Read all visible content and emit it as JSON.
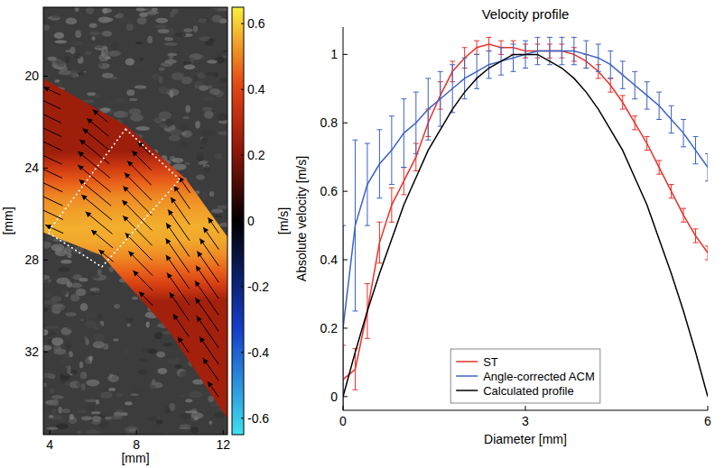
{
  "chart_data": [
    {
      "type": "vector_field",
      "xlabel": "[mm]",
      "ylabel": "[mm]",
      "xlim": [
        3.7,
        12.2
      ],
      "ylim": [
        35.6,
        17.0
      ],
      "xticks": [
        4,
        8,
        12
      ],
      "yticks": [
        20,
        24,
        28,
        32
      ],
      "vessel": {
        "upper_x": [
          3.7,
          7.6,
          10.3,
          12.2
        ],
        "upper_y": [
          20.1,
          22.2,
          24.5,
          27.0
        ],
        "lower_x": [
          3.7,
          6.4,
          9.5,
          12.2
        ],
        "lower_y": [
          26.8,
          27.8,
          31.1,
          34.9
        ]
      },
      "roi": {
        "x": [
          7.5,
          10.0,
          6.4,
          3.9
        ],
        "y": [
          22.3,
          24.5,
          28.3,
          26.8
        ]
      },
      "vectors": {
        "positions": [
          0.08,
          0.3,
          0.52,
          0.74,
          0.94
        ],
        "speeds": [
          [
            0.25,
            0.36,
            0.44,
            0.5,
            0.54,
            0.56,
            0.55,
            0.52,
            0.46,
            0.38,
            0.26
          ],
          [
            0.26,
            0.37,
            0.45,
            0.51,
            0.55,
            0.56,
            0.55,
            0.52,
            0.46,
            0.37,
            0.25
          ],
          [
            0.25,
            0.36,
            0.45,
            0.51,
            0.54,
            0.56,
            0.55,
            0.51,
            0.45,
            0.37,
            0.26
          ],
          [
            0.26,
            0.37,
            0.44,
            0.5,
            0.54,
            0.55,
            0.54,
            0.51,
            0.45,
            0.36,
            0.25
          ],
          [
            0.25,
            0.36,
            0.44,
            0.5,
            0.53,
            0.55,
            0.54,
            0.51,
            0.44,
            0.36,
            0.25
          ]
        ]
      },
      "colorbar": {
        "label": "[m/s]",
        "lim": [
          -0.65,
          0.65
        ],
        "ticks": [
          -0.6,
          -0.4,
          -0.2,
          0,
          0.2,
          0.4,
          0.6
        ]
      }
    },
    {
      "type": "line",
      "title": "Velocity profile",
      "xlabel": "Diameter [mm]",
      "ylabel": "Absolute velocity [m/s]",
      "x": [
        0,
        0.2,
        0.4,
        0.6,
        0.8,
        1,
        1.2,
        1.4,
        1.6,
        1.8,
        2,
        2.2,
        2.4,
        2.6,
        2.8,
        3,
        3.2,
        3.4,
        3.6,
        3.8,
        4,
        4.2,
        4.4,
        4.6,
        4.8,
        5,
        5.2,
        5.4,
        5.6,
        5.8,
        6
      ],
      "xlim": [
        0,
        6
      ],
      "xticks": [
        0,
        3,
        6
      ],
      "ylim": [
        -0.04,
        1.08
      ],
      "yticks": [
        0,
        0.2,
        0.4,
        0.6,
        0.8,
        1
      ],
      "legend": "bottom",
      "series": [
        {
          "name": "ST",
          "color": "#e8322c",
          "values": [
            0.05,
            0.08,
            0.25,
            0.45,
            0.56,
            0.63,
            0.7,
            0.8,
            0.88,
            0.95,
            0.99,
            1.02,
            1.03,
            1.02,
            1.02,
            1.01,
            1.01,
            1.01,
            1.01,
            1.0,
            0.98,
            0.95,
            0.91,
            0.86,
            0.8,
            0.74,
            0.67,
            0.6,
            0.53,
            0.47,
            0.42
          ],
          "errors": [
            0.1,
            0.06,
            0.08,
            0.06,
            0.05,
            0.04,
            0.04,
            0.04,
            0.04,
            0.03,
            0.03,
            0.02,
            0.02,
            0.02,
            0.02,
            0.02,
            0.02,
            0.02,
            0.02,
            0.02,
            0.02,
            0.02,
            0.02,
            0.02,
            0.02,
            0.02,
            0.02,
            0.02,
            0.02,
            0.02,
            0.02
          ]
        },
        {
          "name": "Angle-corrected ACM",
          "color": "#3a62c4",
          "values": [
            0.2,
            0.5,
            0.62,
            0.68,
            0.72,
            0.77,
            0.8,
            0.84,
            0.87,
            0.9,
            0.93,
            0.95,
            0.97,
            0.98,
            0.99,
            1.0,
            1.01,
            1.01,
            1.01,
            1.01,
            1.0,
            0.99,
            0.97,
            0.94,
            0.91,
            0.88,
            0.85,
            0.81,
            0.77,
            0.72,
            0.67
          ],
          "errors": [
            0.3,
            0.25,
            0.12,
            0.1,
            0.1,
            0.1,
            0.09,
            0.09,
            0.08,
            0.07,
            0.06,
            0.05,
            0.04,
            0.04,
            0.04,
            0.04,
            0.04,
            0.04,
            0.04,
            0.04,
            0.04,
            0.04,
            0.04,
            0.04,
            0.04,
            0.04,
            0.04,
            0.04,
            0.04,
            0.04,
            0.04
          ]
        },
        {
          "name": "Calculated profile",
          "color": "#000000",
          "values": [
            0,
            0.13,
            0.25,
            0.36,
            0.46,
            0.56,
            0.64,
            0.72,
            0.78,
            0.84,
            0.89,
            0.93,
            0.96,
            0.98,
            1.0,
            1,
            1.0,
            0.98,
            0.96,
            0.93,
            0.89,
            0.84,
            0.78,
            0.72,
            0.64,
            0.56,
            0.46,
            0.36,
            0.25,
            0.13,
            0
          ]
        }
      ]
    }
  ]
}
